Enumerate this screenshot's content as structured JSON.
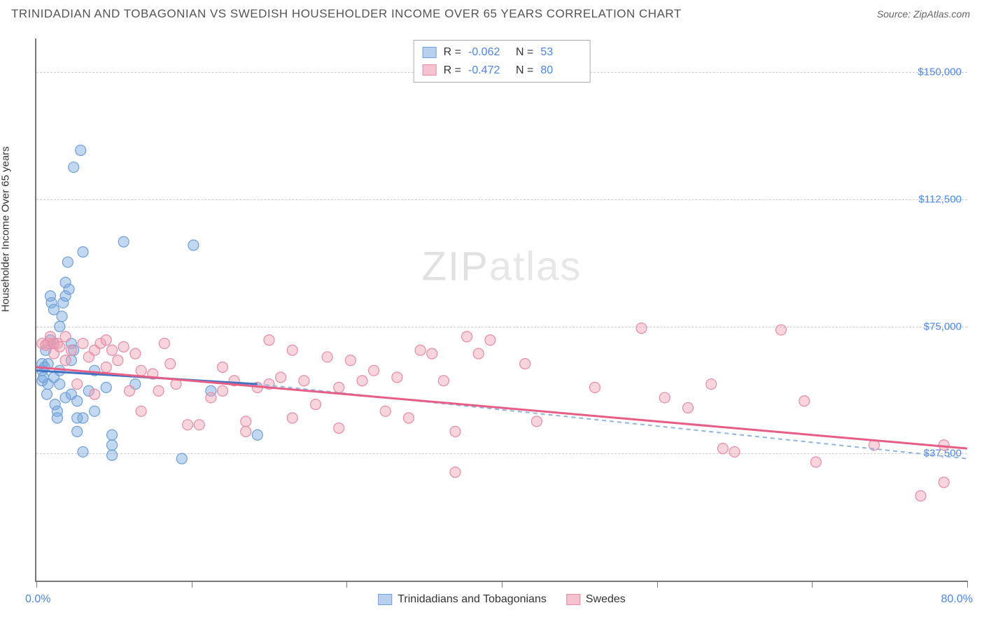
{
  "title": "TRINIDADIAN AND TOBAGONIAN VS SWEDISH HOUSEHOLDER INCOME OVER 65 YEARS CORRELATION CHART",
  "source": "Source: ZipAtlas.com",
  "ylabel": "Householder Income Over 65 years",
  "watermark_a": "ZIP",
  "watermark_b": "atlas",
  "chart": {
    "type": "scatter-with-regression",
    "xlim": [
      0,
      80
    ],
    "ylim": [
      0,
      160000
    ],
    "x_axis_label_left": "0.0%",
    "x_axis_label_right": "80.0%",
    "y_ticks": [
      {
        "v": 37500,
        "label": "$37,500"
      },
      {
        "v": 75000,
        "label": "$75,000"
      },
      {
        "v": 112500,
        "label": "$112,500"
      },
      {
        "v": 150000,
        "label": "$150,000"
      }
    ],
    "x_tick_positions": [
      0,
      13.33,
      26.67,
      40,
      53.33,
      66.67,
      80
    ],
    "grid_color": "#cccccc",
    "axis_color": "#777777",
    "tick_label_color": "#4a86e8",
    "series": [
      {
        "name": "Trinidadians and Tobagonians",
        "color_fill": "rgba(120,168,224,0.45)",
        "color_stroke": "#6f9fd8",
        "swatch_fill": "#b8d0ee",
        "swatch_border": "#6f9fd8",
        "R": "-0.062",
        "N": "53",
        "regression": {
          "x1": 0,
          "y1": 62000,
          "x2": 19,
          "y2": 58000,
          "solid_color": "#3d72c4",
          "dash_to_x": 80,
          "dash_to_y": 36000,
          "dash_color": "#8fb5e0"
        },
        "points": [
          [
            0.5,
            59000
          ],
          [
            0.5,
            62000
          ],
          [
            0.5,
            64000
          ],
          [
            0.6,
            60000
          ],
          [
            0.7,
            63000
          ],
          [
            0.8,
            68000
          ],
          [
            0.9,
            55000
          ],
          [
            1.0,
            58000
          ],
          [
            1.0,
            64000
          ],
          [
            1.2,
            84000
          ],
          [
            1.2,
            71000
          ],
          [
            1.3,
            82000
          ],
          [
            1.5,
            80000
          ],
          [
            1.5,
            70000
          ],
          [
            1.5,
            60000
          ],
          [
            1.6,
            52000
          ],
          [
            1.8,
            50000
          ],
          [
            1.8,
            48000
          ],
          [
            2.0,
            75000
          ],
          [
            2.0,
            62000
          ],
          [
            2.0,
            58000
          ],
          [
            2.2,
            78000
          ],
          [
            2.3,
            82000
          ],
          [
            2.5,
            84000
          ],
          [
            2.5,
            88000
          ],
          [
            2.5,
            54000
          ],
          [
            2.7,
            94000
          ],
          [
            2.8,
            86000
          ],
          [
            3.0,
            70000
          ],
          [
            3.0,
            65000
          ],
          [
            3.0,
            55000
          ],
          [
            3.2,
            122000
          ],
          [
            3.2,
            68000
          ],
          [
            3.5,
            53000
          ],
          [
            3.5,
            48000
          ],
          [
            3.5,
            44000
          ],
          [
            3.8,
            127000
          ],
          [
            4.0,
            97000
          ],
          [
            4.0,
            48000
          ],
          [
            4.0,
            38000
          ],
          [
            4.5,
            56000
          ],
          [
            5.0,
            62000
          ],
          [
            5.0,
            50000
          ],
          [
            6.0,
            57000
          ],
          [
            6.5,
            43000
          ],
          [
            6.5,
            40000
          ],
          [
            6.5,
            37000
          ],
          [
            7.5,
            100000
          ],
          [
            8.5,
            58000
          ],
          [
            12.5,
            36000
          ],
          [
            13.5,
            99000
          ],
          [
            15.0,
            56000
          ],
          [
            19.0,
            43000
          ]
        ]
      },
      {
        "name": "Swedes",
        "color_fill": "rgba(240,160,180,0.45)",
        "color_stroke": "#e88ba5",
        "swatch_fill": "#f5c3d0",
        "swatch_border": "#e88ba5",
        "R": "-0.472",
        "N": "80",
        "regression": {
          "x1": 0,
          "y1": 63000,
          "x2": 80,
          "y2": 39000,
          "solid_color": "#e65d85"
        },
        "points": [
          [
            0.5,
            70000
          ],
          [
            0.8,
            69500
          ],
          [
            1.0,
            70000
          ],
          [
            1.2,
            72000
          ],
          [
            1.5,
            70000
          ],
          [
            1.5,
            67000
          ],
          [
            1.8,
            70000
          ],
          [
            2.0,
            69000
          ],
          [
            2.5,
            65000
          ],
          [
            2.5,
            72000
          ],
          [
            3.0,
            68000
          ],
          [
            3.5,
            58000
          ],
          [
            4.0,
            70000
          ],
          [
            4.5,
            66000
          ],
          [
            5.0,
            68000
          ],
          [
            5.0,
            55000
          ],
          [
            5.5,
            70000
          ],
          [
            6.0,
            63000
          ],
          [
            6.0,
            71000
          ],
          [
            6.5,
            68000
          ],
          [
            7.0,
            65000
          ],
          [
            7.5,
            69000
          ],
          [
            8.0,
            56000
          ],
          [
            8.5,
            67000
          ],
          [
            9.0,
            50000
          ],
          [
            9.0,
            62000
          ],
          [
            10.0,
            61000
          ],
          [
            10.5,
            56000
          ],
          [
            11.0,
            70000
          ],
          [
            11.5,
            64000
          ],
          [
            12.0,
            58000
          ],
          [
            13.0,
            46000
          ],
          [
            14.0,
            46000
          ],
          [
            15.0,
            54000
          ],
          [
            16.0,
            63000
          ],
          [
            16.0,
            56000
          ],
          [
            17.0,
            59000
          ],
          [
            18.0,
            47000
          ],
          [
            18.0,
            44000
          ],
          [
            19.0,
            57000
          ],
          [
            20.0,
            71000
          ],
          [
            20.0,
            58000
          ],
          [
            21.0,
            60000
          ],
          [
            22.0,
            48000
          ],
          [
            22.0,
            68000
          ],
          [
            23.0,
            59000
          ],
          [
            24.0,
            52000
          ],
          [
            25.0,
            66000
          ],
          [
            26.0,
            57000
          ],
          [
            26.0,
            45000
          ],
          [
            27.0,
            65000
          ],
          [
            28.0,
            59000
          ],
          [
            29.0,
            62000
          ],
          [
            30.0,
            50000
          ],
          [
            31.0,
            60000
          ],
          [
            32.0,
            48000
          ],
          [
            33.0,
            68000
          ],
          [
            34.0,
            67000
          ],
          [
            35.0,
            59000
          ],
          [
            36.0,
            44000
          ],
          [
            36.0,
            32000
          ],
          [
            37.0,
            72000
          ],
          [
            38.0,
            67000
          ],
          [
            39.0,
            71000
          ],
          [
            42.0,
            64000
          ],
          [
            43.0,
            47000
          ],
          [
            48.0,
            57000
          ],
          [
            52.0,
            74500
          ],
          [
            56.0,
            51000
          ],
          [
            58.0,
            58000
          ],
          [
            59.0,
            39000
          ],
          [
            60.0,
            38000
          ],
          [
            64.0,
            74000
          ],
          [
            66.0,
            53000
          ],
          [
            67.0,
            35000
          ],
          [
            72.0,
            40000
          ],
          [
            76.0,
            25000
          ],
          [
            78.0,
            40000
          ],
          [
            78.0,
            29000
          ],
          [
            54.0,
            54000
          ]
        ]
      }
    ],
    "legend_bottom": [
      {
        "label": "Trinidadians and Tobagonians",
        "fill": "#b8d0ee",
        "border": "#6f9fd8"
      },
      {
        "label": "Swedes",
        "fill": "#f5c3d0",
        "border": "#e88ba5"
      }
    ]
  }
}
